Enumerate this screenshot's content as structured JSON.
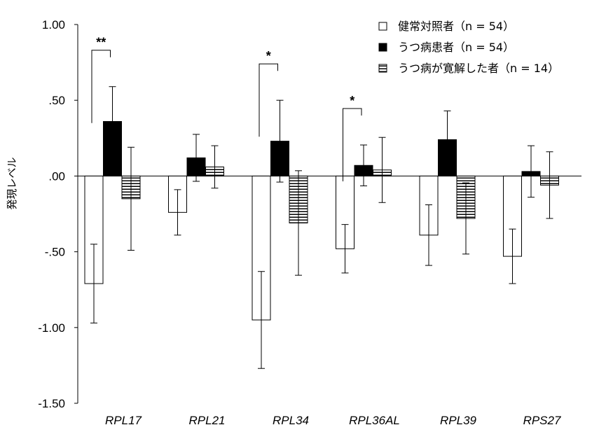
{
  "chart_data": {
    "type": "bar",
    "ylabel": "発現レベル",
    "xlabel": "",
    "ylim": [
      -1.5,
      1.0
    ],
    "yticks": [
      1.0,
      0.5,
      0.0,
      -0.5,
      -1.0,
      -1.5
    ],
    "ytick_labels": [
      "1.00",
      ".50",
      ".00",
      "-.50",
      "-1.00",
      "-1.50"
    ],
    "categories": [
      "RPL17",
      "RPL21",
      "RPL34",
      "RPL36AL",
      "RPL39",
      "RPS27"
    ],
    "series": [
      {
        "name": "健常対照者（n = 54）",
        "fill": "none",
        "values": [
          -0.71,
          -0.24,
          -0.95,
          -0.48,
          -0.39,
          -0.53
        ],
        "error": [
          0.26,
          0.15,
          0.32,
          0.16,
          0.2,
          0.18
        ]
      },
      {
        "name": "うつ病患者（n = 54）",
        "fill": "solid",
        "values": [
          0.36,
          0.12,
          0.23,
          0.07,
          0.24,
          0.03
        ],
        "error": [
          0.23,
          0.155,
          0.27,
          0.135,
          0.19,
          0.17
        ]
      },
      {
        "name": "うつ病が寛解した者（n = 14）",
        "fill": "stripes",
        "values": [
          -0.15,
          0.06,
          -0.31,
          0.04,
          -0.28,
          -0.06
        ],
        "error": [
          0.34,
          0.14,
          0.345,
          0.215,
          0.235,
          0.22
        ]
      }
    ],
    "significance": [
      {
        "category": "RPL17",
        "label": "**"
      },
      {
        "category": "RPL34",
        "label": "*"
      },
      {
        "category": "RPL36AL",
        "label": "*"
      }
    ],
    "legend_position": "top-right",
    "grid": false,
    "colors": {
      "bar_stroke": "#000000",
      "solid_fill": "#000000",
      "open_fill": "#ffffff"
    }
  }
}
